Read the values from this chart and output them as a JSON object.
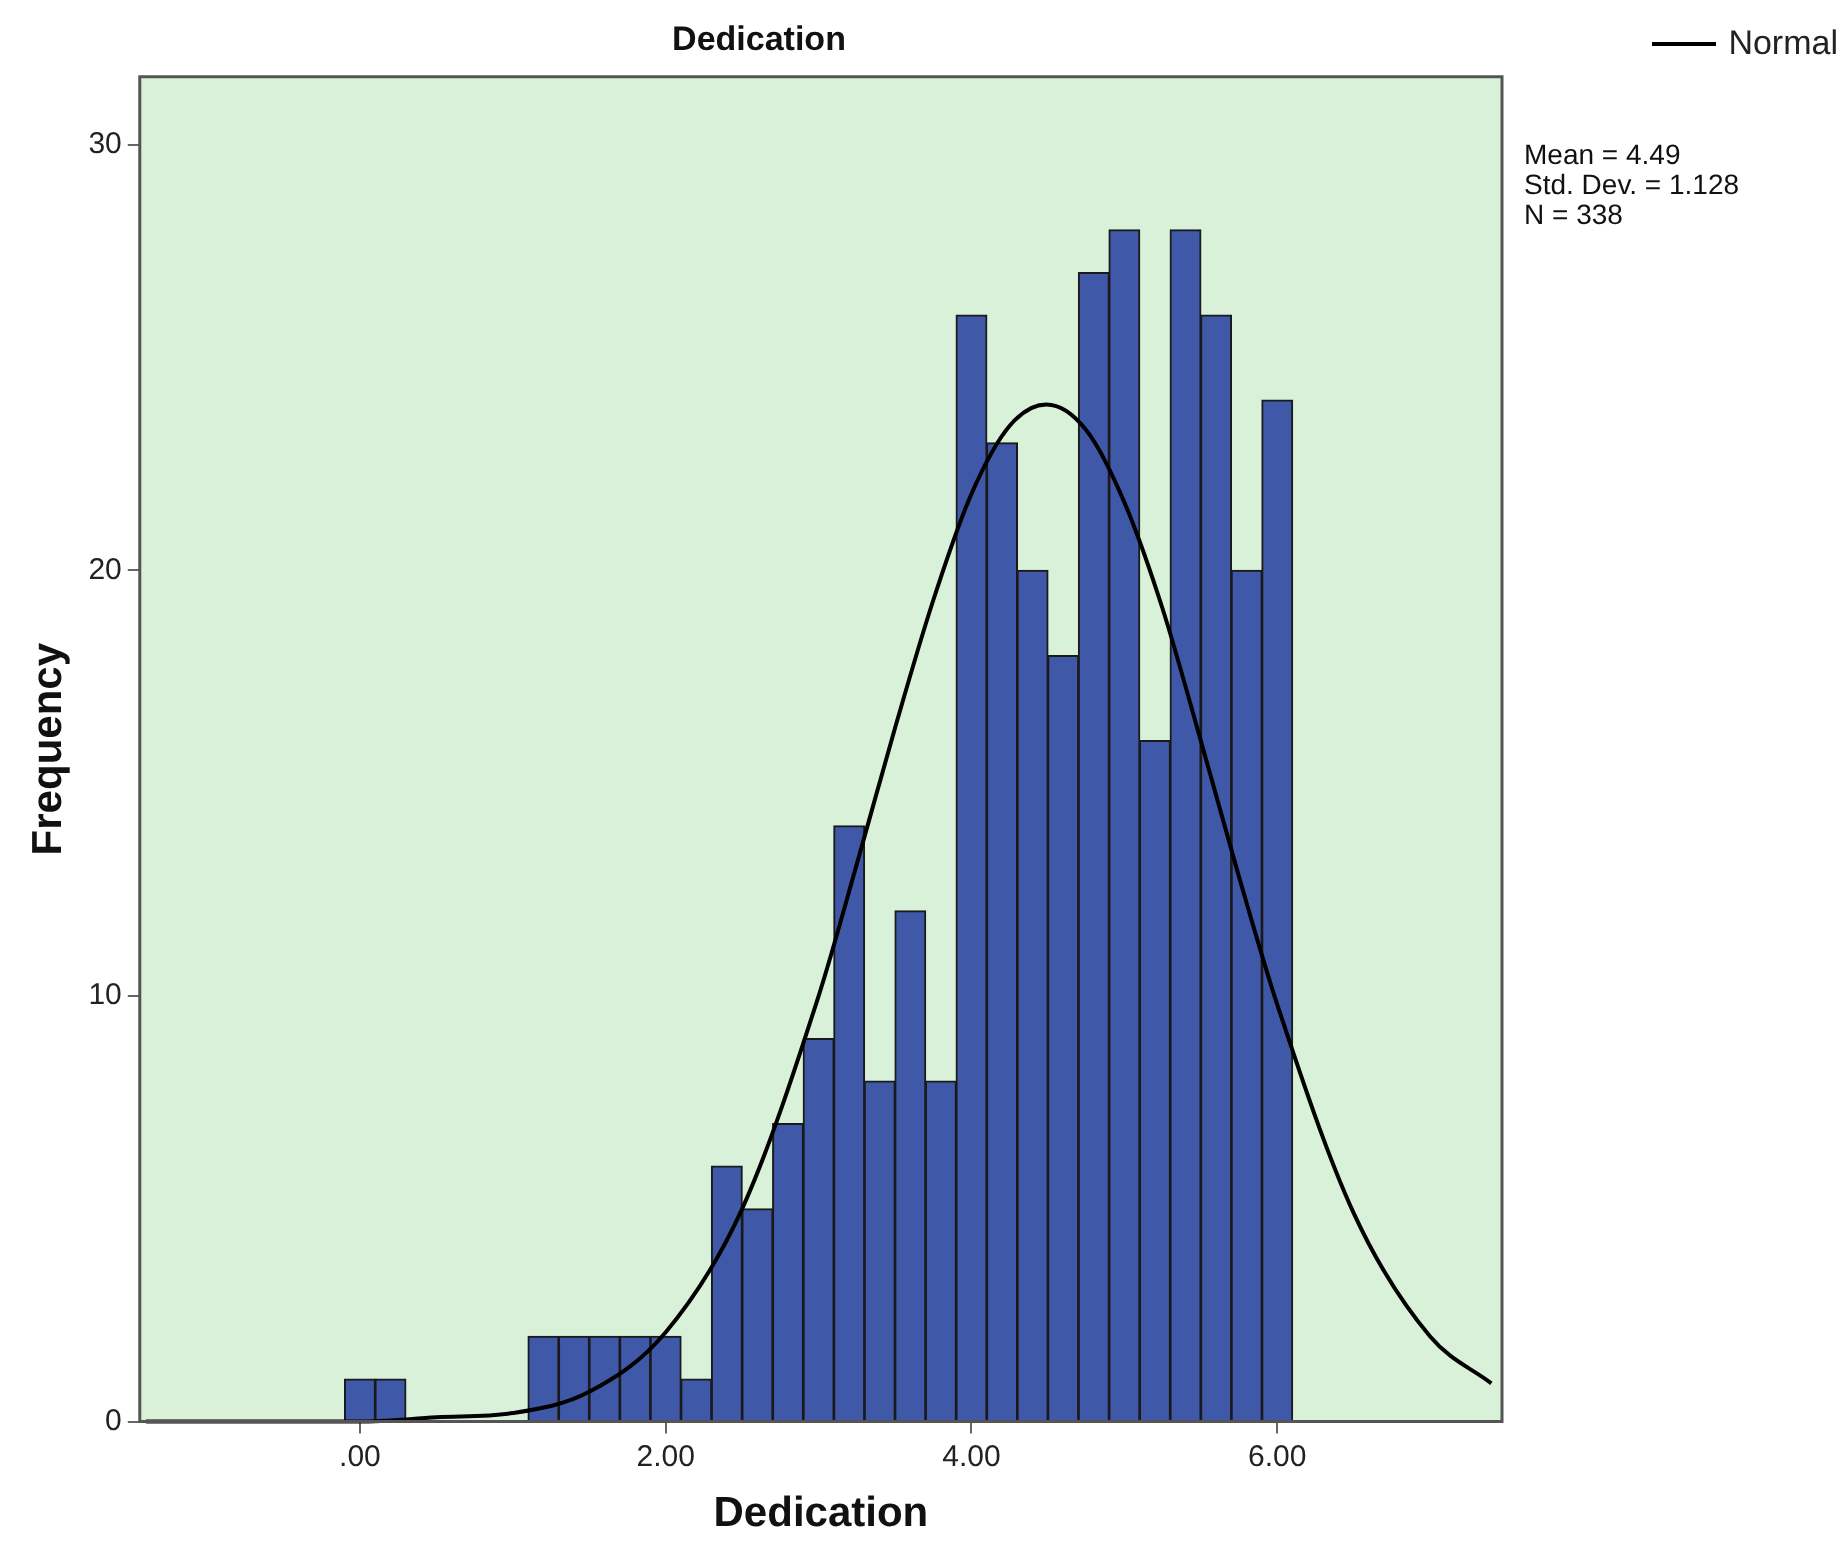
{
  "chart_data": {
    "type": "histogram",
    "title": "Dedication",
    "xlabel": "Dedication",
    "ylabel": "Frequency",
    "bins": [
      -0.1,
      0.1,
      0.3,
      0.5,
      0.7,
      0.9,
      1.1,
      1.3,
      1.5,
      1.7,
      1.9,
      2.1,
      2.3,
      2.5,
      2.7,
      2.9,
      3.1,
      3.3,
      3.5,
      3.7,
      3.9,
      4.1,
      4.3,
      4.5,
      4.7,
      4.9,
      5.1,
      5.3,
      5.5,
      5.7,
      5.9,
      6.1
    ],
    "values": [
      1,
      1,
      0,
      0,
      0,
      0,
      2,
      2,
      2,
      2,
      2,
      1,
      6,
      5,
      7,
      9,
      14,
      8,
      12,
      8,
      26,
      23,
      20,
      18,
      27,
      28,
      16,
      28,
      26,
      20,
      24
    ],
    "color": "#3f58a8",
    "series": [
      {
        "name": "Normal",
        "type": "line",
        "color": "#000000",
        "x": [
          -1.4,
          0,
          0.5,
          1,
          1.5,
          2,
          2.5,
          3,
          3.25,
          3.5,
          3.75,
          4,
          4.25,
          4.49,
          4.75,
          5,
          5.25,
          5.5,
          5.75,
          6,
          6.5,
          7,
          7.4
        ],
        "values": [
          0,
          0,
          0.1,
          0.2,
          0.7,
          2.1,
          5.0,
          10.0,
          13.1,
          16.3,
          19.3,
          21.8,
          23.4,
          23.9,
          23.3,
          21.6,
          19.1,
          16.0,
          12.8,
          9.8,
          4.9,
          2.0,
          0.9
        ]
      }
    ],
    "xlim": [
      -1.44,
      7.47
    ],
    "xticks": [
      {
        "value": 0,
        "label": ".00"
      },
      {
        "value": 2,
        "label": "2.00"
      },
      {
        "value": 4,
        "label": "4.00"
      },
      {
        "value": 6,
        "label": "6.00"
      }
    ],
    "ylim": [
      0,
      31.6
    ],
    "yticks": [
      0,
      10,
      20,
      30
    ],
    "legend": "top right",
    "marker": "none",
    "annotations": [
      "Mean = 4.49",
      "Std. Dev. = 1.128",
      "N = 338"
    ]
  }
}
